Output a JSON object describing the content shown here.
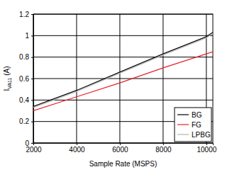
{
  "chart_data": {
    "type": "line",
    "xlabel": "Sample Rate (MSPS)",
    "ylabel": "IVA11 (A)",
    "x": [
      2000,
      4000,
      6000,
      8000,
      10000,
      10300
    ],
    "series": [
      {
        "name": "BG",
        "color": "#000000",
        "values": [
          0.34,
          0.49,
          0.66,
          0.83,
          0.99,
          1.03
        ]
      },
      {
        "name": "FG",
        "color": "#e8202a",
        "values": [
          0.3,
          0.43,
          0.56,
          0.7,
          0.83,
          0.85
        ]
      },
      {
        "name": "LPBG",
        "color": "#b4b4b4",
        "values": [
          0.33,
          0.48,
          0.65,
          0.82,
          0.98,
          1.02
        ]
      }
    ],
    "xlim": [
      2000,
      10300
    ],
    "ylim": [
      0,
      1.2
    ],
    "xticks": [
      2000,
      4000,
      6000,
      8000,
      10000
    ],
    "yticks": [
      0,
      0.2,
      0.4,
      0.6,
      0.8,
      1,
      1.2
    ],
    "grid": true,
    "legend": "bottom-right"
  }
}
